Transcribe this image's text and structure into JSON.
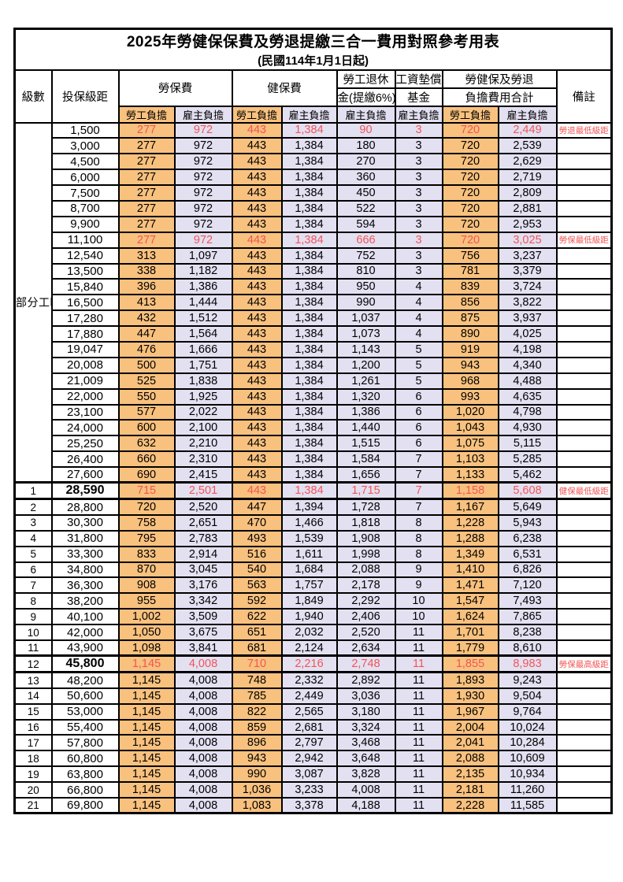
{
  "title": "2025年勞健保保費及勞退提繳三合一費用對照參考用表",
  "subtitle": "(民國114年1月1日起)",
  "header": {
    "level": "級數",
    "bracket": "投保級距",
    "labor_fee": "勞保費",
    "health_fee": "健保費",
    "pension_l1": "勞工退休",
    "pension_l2": "金(提繳6%)",
    "wage_fund_l1": "工資墊償",
    "wage_fund_l2": "基金",
    "total_l1": "勞健保及勞退",
    "total_l2": "負擔費用合計",
    "remark": "備註",
    "employee_share": "勞工負擔",
    "employer_share": "雇主負擔"
  },
  "part_time_label": "部分工時",
  "colors": {
    "employee_bg": "#F8C17E",
    "employer_bg": "#E3E0F2",
    "highlight_text": "#F25555",
    "border": "#000000"
  },
  "rows": [
    {
      "level": "",
      "bracket": "1,500",
      "values": [
        "277",
        "972",
        "443",
        "1,384",
        "90",
        "3",
        "720",
        "2,449"
      ],
      "remark": "勞退最低級距",
      "red": true
    },
    {
      "level": "",
      "bracket": "3,000",
      "values": [
        "277",
        "972",
        "443",
        "1,384",
        "180",
        "3",
        "720",
        "2,539"
      ],
      "remark": ""
    },
    {
      "level": "",
      "bracket": "4,500",
      "values": [
        "277",
        "972",
        "443",
        "1,384",
        "270",
        "3",
        "720",
        "2,629"
      ],
      "remark": ""
    },
    {
      "level": "",
      "bracket": "6,000",
      "values": [
        "277",
        "972",
        "443",
        "1,384",
        "360",
        "3",
        "720",
        "2,719"
      ],
      "remark": ""
    },
    {
      "level": "",
      "bracket": "7,500",
      "values": [
        "277",
        "972",
        "443",
        "1,384",
        "450",
        "3",
        "720",
        "2,809"
      ],
      "remark": ""
    },
    {
      "level": "",
      "bracket": "8,700",
      "values": [
        "277",
        "972",
        "443",
        "1,384",
        "522",
        "3",
        "720",
        "2,881"
      ],
      "remark": ""
    },
    {
      "level": "",
      "bracket": "9,900",
      "values": [
        "277",
        "972",
        "443",
        "1,384",
        "594",
        "3",
        "720",
        "2,953"
      ],
      "remark": ""
    },
    {
      "level": "",
      "bracket": "11,100",
      "values": [
        "277",
        "972",
        "443",
        "1,384",
        "666",
        "3",
        "720",
        "3,025"
      ],
      "remark": "勞保最低級距",
      "red": true
    },
    {
      "level": "",
      "bracket": "12,540",
      "values": [
        "313",
        "1,097",
        "443",
        "1,384",
        "752",
        "3",
        "756",
        "3,237"
      ],
      "remark": ""
    },
    {
      "level": "",
      "bracket": "13,500",
      "values": [
        "338",
        "1,182",
        "443",
        "1,384",
        "810",
        "3",
        "781",
        "3,379"
      ],
      "remark": ""
    },
    {
      "level": "",
      "bracket": "15,840",
      "values": [
        "396",
        "1,386",
        "443",
        "1,384",
        "950",
        "4",
        "839",
        "3,724"
      ],
      "remark": ""
    },
    {
      "level": "",
      "bracket": "16,500",
      "values": [
        "413",
        "1,444",
        "443",
        "1,384",
        "990",
        "4",
        "856",
        "3,822"
      ],
      "remark": ""
    },
    {
      "level": "",
      "bracket": "17,280",
      "values": [
        "432",
        "1,512",
        "443",
        "1,384",
        "1,037",
        "4",
        "875",
        "3,937"
      ],
      "remark": ""
    },
    {
      "level": "",
      "bracket": "17,880",
      "values": [
        "447",
        "1,564",
        "443",
        "1,384",
        "1,073",
        "4",
        "890",
        "4,025"
      ],
      "remark": ""
    },
    {
      "level": "",
      "bracket": "19,047",
      "values": [
        "476",
        "1,666",
        "443",
        "1,384",
        "1,143",
        "5",
        "919",
        "4,198"
      ],
      "remark": ""
    },
    {
      "level": "",
      "bracket": "20,008",
      "values": [
        "500",
        "1,751",
        "443",
        "1,384",
        "1,200",
        "5",
        "943",
        "4,340"
      ],
      "remark": ""
    },
    {
      "level": "",
      "bracket": "21,009",
      "values": [
        "525",
        "1,838",
        "443",
        "1,384",
        "1,261",
        "5",
        "968",
        "4,488"
      ],
      "remark": ""
    },
    {
      "level": "",
      "bracket": "22,000",
      "values": [
        "550",
        "1,925",
        "443",
        "1,384",
        "1,320",
        "6",
        "993",
        "4,635"
      ],
      "remark": ""
    },
    {
      "level": "",
      "bracket": "23,100",
      "values": [
        "577",
        "2,022",
        "443",
        "1,384",
        "1,386",
        "6",
        "1,020",
        "4,798"
      ],
      "remark": ""
    },
    {
      "level": "",
      "bracket": "24,000",
      "values": [
        "600",
        "2,100",
        "443",
        "1,384",
        "1,440",
        "6",
        "1,043",
        "4,930"
      ],
      "remark": ""
    },
    {
      "level": "",
      "bracket": "25,250",
      "values": [
        "632",
        "2,210",
        "443",
        "1,384",
        "1,515",
        "6",
        "1,075",
        "5,115"
      ],
      "remark": ""
    },
    {
      "level": "",
      "bracket": "26,400",
      "values": [
        "660",
        "2,310",
        "443",
        "1,384",
        "1,584",
        "7",
        "1,103",
        "5,285"
      ],
      "remark": ""
    },
    {
      "level": "",
      "bracket": "27,600",
      "values": [
        "690",
        "2,415",
        "443",
        "1,384",
        "1,656",
        "7",
        "1,133",
        "5,462"
      ],
      "remark": ""
    },
    {
      "level": "1",
      "bracket": "28,590",
      "values": [
        "715",
        "2,501",
        "443",
        "1,384",
        "1,715",
        "7",
        "1,158",
        "5,608"
      ],
      "remark": "健保最低級距",
      "red": true,
      "thick": true,
      "bold": true
    },
    {
      "level": "2",
      "bracket": "28,800",
      "values": [
        "720",
        "2,520",
        "447",
        "1,394",
        "1,728",
        "7",
        "1,167",
        "5,649"
      ],
      "remark": ""
    },
    {
      "level": "3",
      "bracket": "30,300",
      "values": [
        "758",
        "2,651",
        "470",
        "1,466",
        "1,818",
        "8",
        "1,228",
        "5,943"
      ],
      "remark": ""
    },
    {
      "level": "4",
      "bracket": "31,800",
      "values": [
        "795",
        "2,783",
        "493",
        "1,539",
        "1,908",
        "8",
        "1,288",
        "6,238"
      ],
      "remark": ""
    },
    {
      "level": "5",
      "bracket": "33,300",
      "values": [
        "833",
        "2,914",
        "516",
        "1,611",
        "1,998",
        "8",
        "1,349",
        "6,531"
      ],
      "remark": ""
    },
    {
      "level": "6",
      "bracket": "34,800",
      "values": [
        "870",
        "3,045",
        "540",
        "1,684",
        "2,088",
        "9",
        "1,410",
        "6,826"
      ],
      "remark": ""
    },
    {
      "level": "7",
      "bracket": "36,300",
      "values": [
        "908",
        "3,176",
        "563",
        "1,757",
        "2,178",
        "9",
        "1,471",
        "7,120"
      ],
      "remark": ""
    },
    {
      "level": "8",
      "bracket": "38,200",
      "values": [
        "955",
        "3,342",
        "592",
        "1,849",
        "2,292",
        "10",
        "1,547",
        "7,493"
      ],
      "remark": ""
    },
    {
      "level": "9",
      "bracket": "40,100",
      "values": [
        "1,002",
        "3,509",
        "622",
        "1,940",
        "2,406",
        "10",
        "1,624",
        "7,865"
      ],
      "remark": ""
    },
    {
      "level": "10",
      "bracket": "42,000",
      "values": [
        "1,050",
        "3,675",
        "651",
        "2,032",
        "2,520",
        "11",
        "1,701",
        "8,238"
      ],
      "remark": ""
    },
    {
      "level": "11",
      "bracket": "43,900",
      "values": [
        "1,098",
        "3,841",
        "681",
        "2,124",
        "2,634",
        "11",
        "1,779",
        "8,610"
      ],
      "remark": ""
    },
    {
      "level": "12",
      "bracket": "45,800",
      "values": [
        "1,145",
        "4,008",
        "710",
        "2,216",
        "2,748",
        "11",
        "1,855",
        "8,983"
      ],
      "remark": "勞保最高級距",
      "red": true,
      "thick": true,
      "bold": true
    },
    {
      "level": "13",
      "bracket": "48,200",
      "values": [
        "1,145",
        "4,008",
        "748",
        "2,332",
        "2,892",
        "11",
        "1,893",
        "9,243"
      ],
      "remark": ""
    },
    {
      "level": "14",
      "bracket": "50,600",
      "values": [
        "1,145",
        "4,008",
        "785",
        "2,449",
        "3,036",
        "11",
        "1,930",
        "9,504"
      ],
      "remark": ""
    },
    {
      "level": "15",
      "bracket": "53,000",
      "values": [
        "1,145",
        "4,008",
        "822",
        "2,565",
        "3,180",
        "11",
        "1,967",
        "9,764"
      ],
      "remark": ""
    },
    {
      "level": "16",
      "bracket": "55,400",
      "values": [
        "1,145",
        "4,008",
        "859",
        "2,681",
        "3,324",
        "11",
        "2,004",
        "10,024"
      ],
      "remark": ""
    },
    {
      "level": "17",
      "bracket": "57,800",
      "values": [
        "1,145",
        "4,008",
        "896",
        "2,797",
        "3,468",
        "11",
        "2,041",
        "10,284"
      ],
      "remark": ""
    },
    {
      "level": "18",
      "bracket": "60,800",
      "values": [
        "1,145",
        "4,008",
        "943",
        "2,942",
        "3,648",
        "11",
        "2,088",
        "10,609"
      ],
      "remark": ""
    },
    {
      "level": "19",
      "bracket": "63,800",
      "values": [
        "1,145",
        "4,008",
        "990",
        "3,087",
        "3,828",
        "11",
        "2,135",
        "10,934"
      ],
      "remark": ""
    },
    {
      "level": "20",
      "bracket": "66,800",
      "values": [
        "1,145",
        "4,008",
        "1,036",
        "3,233",
        "4,008",
        "11",
        "2,181",
        "11,260"
      ],
      "remark": ""
    },
    {
      "level": "21",
      "bracket": "69,800",
      "values": [
        "1,145",
        "4,008",
        "1,083",
        "3,378",
        "4,188",
        "11",
        "2,228",
        "11,585"
      ],
      "remark": ""
    }
  ]
}
